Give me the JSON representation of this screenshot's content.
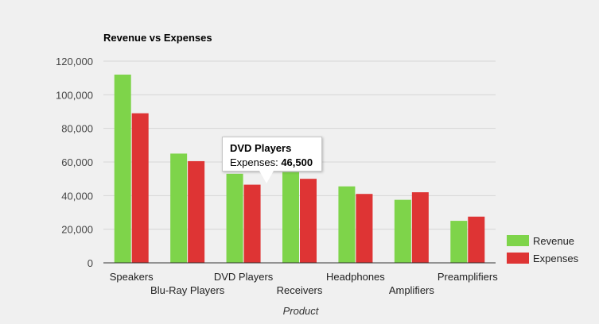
{
  "chart_data": {
    "type": "bar",
    "title": "Revenue vs Expenses",
    "xlabel": "Product",
    "ylabel": "",
    "ylim": [
      0,
      120000
    ],
    "yticks": [
      0,
      20000,
      40000,
      60000,
      80000,
      100000,
      120000
    ],
    "ytick_labels": [
      "0",
      "20,000",
      "40,000",
      "60,000",
      "80,000",
      "100,000",
      "120,000"
    ],
    "categories": [
      "Speakers",
      "Blu-Ray Players",
      "DVD Players",
      "Receivers",
      "Headphones",
      "Amplifiers",
      "Preamplifiers"
    ],
    "series": [
      {
        "name": "Revenue",
        "color": "#7ed44a",
        "values": [
          112000,
          65000,
          53000,
          54000,
          45500,
          37500,
          25000
        ]
      },
      {
        "name": "Expenses",
        "color": "#de3434",
        "values": [
          89000,
          60500,
          46500,
          50000,
          41000,
          42000,
          27500
        ]
      }
    ],
    "grid": true,
    "legend_position": "bottom-right"
  },
  "tooltip": {
    "title": "DVD Players",
    "label": "Expenses:",
    "value": "46,500"
  }
}
